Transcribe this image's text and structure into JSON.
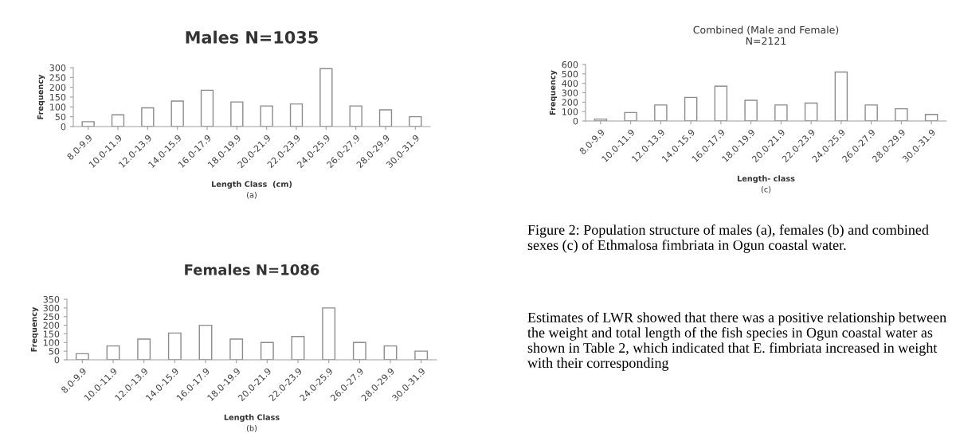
{
  "chart_data": [
    {
      "type": "bar",
      "title": "Males N=1035",
      "xlabel": "Length Class  (cm)",
      "ylabel": "Frequency",
      "categories": [
        "8.0-9.9",
        "10.0-11.9",
        "12.0-13.9",
        "14.0-15.9",
        "16.0-17.9",
        "18.0-19.9",
        "20.0-21.9",
        "22.0-23.9",
        "24.0-25.9",
        "26.0-27.9",
        "28.0-29.9",
        "30.0-31.9"
      ],
      "values": [
        25,
        60,
        95,
        130,
        185,
        125,
        105,
        115,
        295,
        105,
        85,
        50
      ],
      "color": "#ffffff",
      "ylim": [
        0,
        300
      ],
      "yticks": [
        0,
        50,
        100,
        150,
        200,
        250,
        300
      ],
      "grid": false,
      "annotations": [
        "(a)"
      ]
    },
    {
      "type": "bar",
      "title": "Females N=1086",
      "xlabel": "Length Class",
      "ylabel": "Frequency",
      "categories": [
        "8.0-9.9",
        "10.0-11.9",
        "12.0-13.9",
        "14.0-15.9",
        "16.0-17.9",
        "18.0-19.9",
        "20.0-21.9",
        "22.0-23.9",
        "24.0-25.9",
        "26.0-27.9",
        "28.0-29.9",
        "30.0-31.9"
      ],
      "values": [
        35,
        80,
        120,
        155,
        200,
        120,
        100,
        135,
        300,
        100,
        80,
        50
      ],
      "color": "#ffffff",
      "ylim": [
        0,
        350
      ],
      "yticks": [
        0,
        50,
        100,
        150,
        200,
        250,
        300,
        350
      ],
      "grid": false,
      "annotations": [
        "(b)"
      ]
    },
    {
      "type": "bar",
      "title": "Combined (Male and Female)\nN=2121",
      "xlabel": "Length- class",
      "ylabel": "Frequency",
      "categories": [
        "8.0-9.9",
        "10.0-11.9",
        "12.0-13.9",
        "14.0-15.9",
        "16.0-17.9",
        "18.0-19.9",
        "20.0-21.9",
        "22.0-23.9",
        "24.0-25.9",
        "26.0-27.9",
        "28.0-29.9",
        "30.0-31.9"
      ],
      "values": [
        20,
        90,
        170,
        250,
        370,
        220,
        170,
        190,
        520,
        170,
        130,
        70
      ],
      "color": "#ffffff",
      "ylim": [
        0,
        600
      ],
      "yticks": [
        0,
        100,
        200,
        300,
        400,
        500,
        600
      ],
      "grid": false,
      "annotations": [
        "(c)",
        "Figure 2: Population structure of males (a), females (b) and combined sexes (c) of Ethmalosa fimbriata in Ogun coastal water.",
        "Estimates of LWR showed that there was a positive relationship between the weight and total length of the fish species in Ogun coastal water as shown in Table 2, which indicated that E. fimbriata increased in weight with their corresponding"
      ]
    }
  ]
}
